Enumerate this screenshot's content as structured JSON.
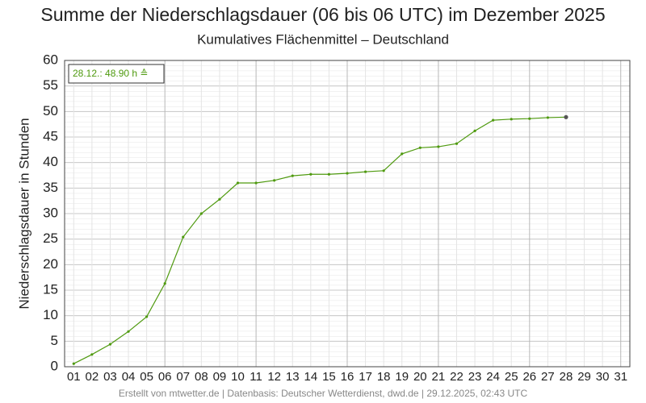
{
  "chart_data": {
    "type": "line",
    "title": "Summe der Niederschlagsdauer (06 bis 06 UTC) im Dezember 2025",
    "subtitle": "Kumulatives Flächenmittel – Deutschland",
    "y_label": "Niederschlagsdauer in Stunden",
    "annotation": "28.12.: 48.90 h ≙",
    "footer": "Erstellt von mtwetter.de | Datenbasis: Deutscher Wetterdienst, dwd.de | 29.12.2025, 02:43 UTC",
    "categories": [
      "01",
      "02",
      "03",
      "04",
      "05",
      "06",
      "07",
      "08",
      "09",
      "10",
      "11",
      "12",
      "13",
      "14",
      "15",
      "16",
      "17",
      "18",
      "19",
      "20",
      "21",
      "22",
      "23",
      "24",
      "25",
      "26",
      "27",
      "28",
      "29",
      "30",
      "31"
    ],
    "series": [
      {
        "name": "Niederschlagsdauer",
        "color": "#4f9a0f",
        "values": [
          0.6,
          2.4,
          4.4,
          6.9,
          9.8,
          16.3,
          25.4,
          30.0,
          32.8,
          36.0,
          36.0,
          36.5,
          37.4,
          37.7,
          37.7,
          37.9,
          38.2,
          38.4,
          41.7,
          42.9,
          43.1,
          43.7,
          46.2,
          48.3,
          48.5,
          48.6,
          48.8,
          48.9,
          null,
          null,
          null
        ]
      }
    ],
    "ylim": [
      0,
      60
    ],
    "yticks": [
      0,
      5,
      10,
      15,
      20,
      25,
      30,
      35,
      40,
      45,
      50,
      55,
      60
    ],
    "grid": true
  }
}
